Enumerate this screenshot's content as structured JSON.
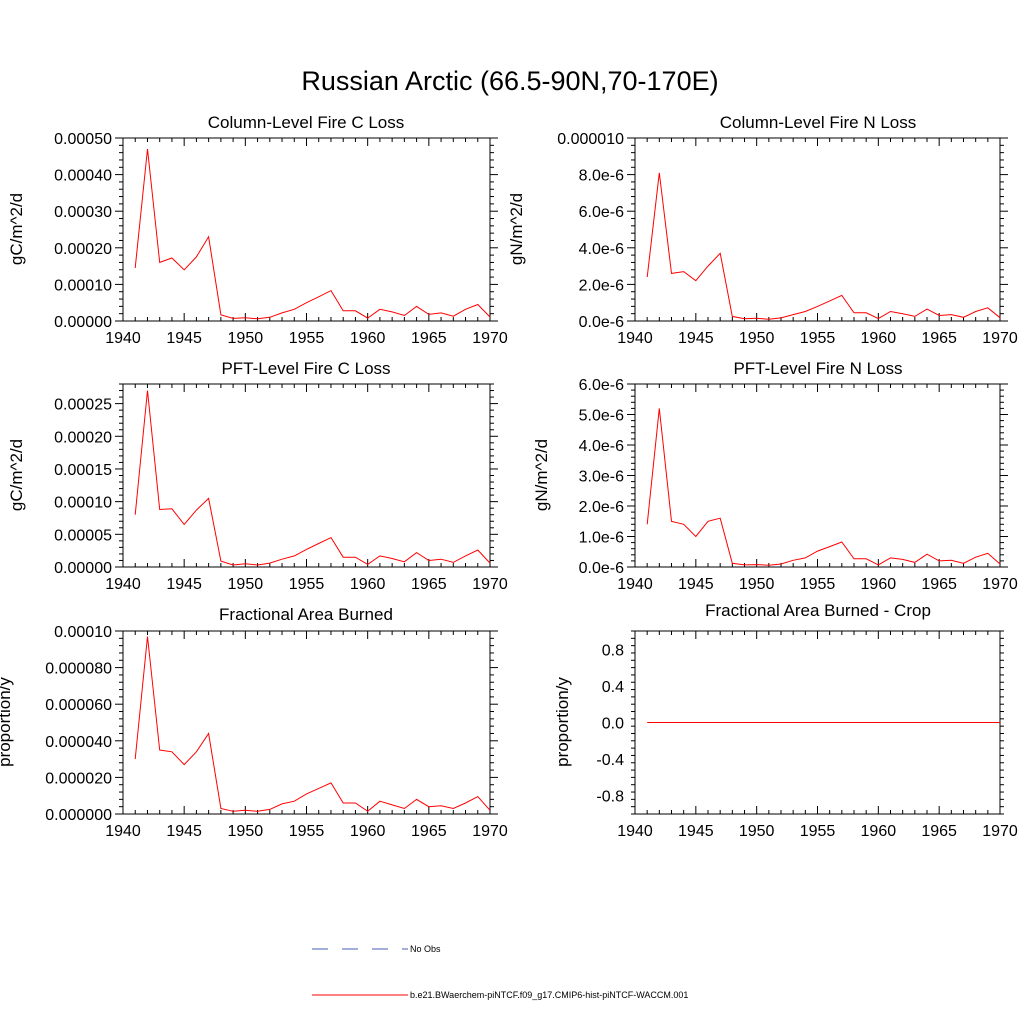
{
  "figure": {
    "title": "Russian Arctic (66.5-90N,70-170E)"
  },
  "legend": {
    "obs_label": "No Obs",
    "model_label": "b.e21.BWaerchem-piNTCF.f09_g17.CMIP6-hist-piNTCF-WACCM.001",
    "colors": {
      "obs": "#4a5dbb",
      "model": "#ff0000"
    }
  },
  "chart_data": [
    {
      "type": "line",
      "title": "Column-Level Fire C Loss",
      "xlabel": "",
      "ylabel": "gC/m^2/d",
      "xlim": [
        1940,
        1970
      ],
      "ylim": [
        0,
        0.0005
      ],
      "xticks": [
        1940,
        1945,
        1950,
        1955,
        1960,
        1965,
        1970
      ],
      "xtick_labels": [
        "1940",
        "1945",
        "1950",
        "1955",
        "1960",
        "1965",
        "1970"
      ],
      "yticks": [
        0,
        0.0001,
        0.0002,
        0.0003,
        0.0004,
        0.0005
      ],
      "ytick_labels": [
        "0.00000",
        "0.00010",
        "0.00020",
        "0.00030",
        "0.00040",
        "0.00050"
      ],
      "series": [
        {
          "color": "#ff0000",
          "x": [
            1941,
            1942,
            1943,
            1944,
            1945,
            1946,
            1947,
            1948,
            1949,
            1950,
            1951,
            1952,
            1953,
            1954,
            1955,
            1956,
            1957,
            1958,
            1959,
            1960,
            1961,
            1962,
            1963,
            1964,
            1965,
            1966,
            1967,
            1968,
            1969,
            1970
          ],
          "y": [
            0.000145,
            0.00047,
            0.00016,
            0.000172,
            0.00014,
            0.000175,
            0.00023,
            1.7e-05,
            7e-06,
            9e-06,
            6e-06,
            1e-05,
            2.2e-05,
            3.2e-05,
            5e-05,
            6.6e-05,
            8.3e-05,
            2.8e-05,
            2.8e-05,
            8e-06,
            3.2e-05,
            2.5e-05,
            1.5e-05,
            4e-05,
            1.8e-05,
            2.2e-05,
            1.3e-05,
            3.2e-05,
            4.5e-05,
            1.1e-05
          ]
        }
      ]
    },
    {
      "type": "line",
      "title": "Column-Level Fire N Loss",
      "xlabel": "",
      "ylabel": "gN/m^2/d",
      "xlim": [
        1940,
        1970
      ],
      "ylim": [
        0,
        1e-05
      ],
      "xticks": [
        1940,
        1945,
        1950,
        1955,
        1960,
        1965,
        1970
      ],
      "xtick_labels": [
        "1940",
        "1945",
        "1950",
        "1955",
        "1960",
        "1965",
        "1970"
      ],
      "yticks": [
        0,
        2e-06,
        4e-06,
        6e-06,
        8e-06,
        1e-05
      ],
      "ytick_labels": [
        "0.0e-6",
        "2.0e-6",
        "4.0e-6",
        "6.0e-6",
        "8.0e-6",
        "0.000010"
      ],
      "series": [
        {
          "color": "#ff0000",
          "x": [
            1941,
            1942,
            1943,
            1944,
            1945,
            1946,
            1947,
            1948,
            1949,
            1950,
            1951,
            1952,
            1953,
            1954,
            1955,
            1956,
            1957,
            1958,
            1959,
            1960,
            1961,
            1962,
            1963,
            1964,
            1965,
            1966,
            1967,
            1968,
            1969,
            1970
          ],
          "y": [
            2.4e-06,
            8.1e-06,
            2.6e-06,
            2.7e-06,
            2.2e-06,
            3e-06,
            3.7e-06,
            2.5e-07,
            1.2e-07,
            1.5e-07,
            1e-07,
            1.7e-07,
            3.5e-07,
            5.2e-07,
            8e-07,
            1.1e-06,
            1.4e-06,
            4.5e-07,
            4.5e-07,
            1.3e-07,
            5.2e-07,
            4e-07,
            2.5e-07,
            6.5e-07,
            3e-07,
            3.5e-07,
            2e-07,
            5.2e-07,
            7.2e-07,
            1.8e-07
          ]
        }
      ]
    },
    {
      "type": "line",
      "title": "PFT-Level Fire C Loss",
      "xlabel": "",
      "ylabel": "gC/m^2/d",
      "xlim": [
        1940,
        1970
      ],
      "ylim": [
        0,
        0.00028
      ],
      "xticks": [
        1940,
        1945,
        1950,
        1955,
        1960,
        1965,
        1970
      ],
      "xtick_labels": [
        "1940",
        "1945",
        "1950",
        "1955",
        "1960",
        "1965",
        "1970"
      ],
      "yticks": [
        0,
        5e-05,
        0.0001,
        0.00015,
        0.0002,
        0.00025
      ],
      "ytick_labels": [
        "0.00000",
        "0.00005",
        "0.00010",
        "0.00015",
        "0.00020",
        "0.00025"
      ],
      "series": [
        {
          "color": "#ff0000",
          "x": [
            1941,
            1942,
            1943,
            1944,
            1945,
            1946,
            1947,
            1948,
            1949,
            1950,
            1951,
            1952,
            1953,
            1954,
            1955,
            1956,
            1957,
            1958,
            1959,
            1960,
            1961,
            1962,
            1963,
            1964,
            1965,
            1966,
            1967,
            1968,
            1969,
            1970
          ],
          "y": [
            8e-05,
            0.00027,
            8.8e-05,
            8.9e-05,
            6.5e-05,
            8.7e-05,
            0.000105,
            9e-06,
            3e-06,
            5e-06,
            3e-06,
            6e-06,
            1.2e-05,
            1.7e-05,
            2.7e-05,
            3.6e-05,
            4.5e-05,
            1.5e-05,
            1.5e-05,
            4e-06,
            1.7e-05,
            1.3e-05,
            8e-06,
            2.2e-05,
            1e-05,
            1.2e-05,
            7e-06,
            1.7e-05,
            2.6e-05,
            6e-06
          ]
        }
      ]
    },
    {
      "type": "line",
      "title": "PFT-Level Fire N Loss",
      "xlabel": "",
      "ylabel": "gN/m^2/d",
      "xlim": [
        1940,
        1970
      ],
      "ylim": [
        0,
        6e-06
      ],
      "xticks": [
        1940,
        1945,
        1950,
        1955,
        1960,
        1965,
        1970
      ],
      "xtick_labels": [
        "1940",
        "1945",
        "1950",
        "1955",
        "1960",
        "1965",
        "1970"
      ],
      "yticks": [
        0,
        1e-06,
        2e-06,
        3e-06,
        4e-06,
        5e-06,
        6e-06
      ],
      "ytick_labels": [
        "0.0e-6",
        "1.0e-6",
        "2.0e-6",
        "3.0e-6",
        "4.0e-6",
        "5.0e-6",
        "6.0e-6"
      ],
      "series": [
        {
          "color": "#ff0000",
          "x": [
            1941,
            1942,
            1943,
            1944,
            1945,
            1946,
            1947,
            1948,
            1949,
            1950,
            1951,
            1952,
            1953,
            1954,
            1955,
            1956,
            1957,
            1958,
            1959,
            1960,
            1961,
            1962,
            1963,
            1964,
            1965,
            1966,
            1967,
            1968,
            1969,
            1970
          ],
          "y": [
            1.4e-06,
            5.2e-06,
            1.5e-06,
            1.4e-06,
            1e-06,
            1.5e-06,
            1.6e-06,
            1.2e-07,
            7e-08,
            8e-08,
            6e-08,
            1e-07,
            2.2e-07,
            3e-07,
            5.2e-07,
            6.7e-07,
            8.2e-07,
            2.7e-07,
            2.7e-07,
            7e-08,
            3e-07,
            2.5e-07,
            1.5e-07,
            4.2e-07,
            2e-07,
            2.2e-07,
            1.2e-07,
            3.2e-07,
            4.5e-07,
            1e-07
          ]
        }
      ]
    },
    {
      "type": "line",
      "title": "Fractional Area Burned",
      "xlabel": "",
      "ylabel": "proportion/y",
      "xlim": [
        1940,
        1970
      ],
      "ylim": [
        0,
        0.0001
      ],
      "xticks": [
        1940,
        1945,
        1950,
        1955,
        1960,
        1965,
        1970
      ],
      "xtick_labels": [
        "1940",
        "1945",
        "1950",
        "1955",
        "1960",
        "1965",
        "1970"
      ],
      "yticks": [
        0,
        2e-05,
        4e-05,
        6e-05,
        8e-05,
        0.0001
      ],
      "ytick_labels": [
        "0.000000",
        "0.000020",
        "0.000040",
        "0.000060",
        "0.000080",
        "0.00010"
      ],
      "series": [
        {
          "color": "#ff0000",
          "x": [
            1941,
            1942,
            1943,
            1944,
            1945,
            1946,
            1947,
            1948,
            1949,
            1950,
            1951,
            1952,
            1953,
            1954,
            1955,
            1956,
            1957,
            1958,
            1959,
            1960,
            1961,
            1962,
            1963,
            1964,
            1965,
            1966,
            1967,
            1968,
            1969,
            1970
          ],
          "y": [
            3e-05,
            9.7e-05,
            3.5e-05,
            3.4e-05,
            2.7e-05,
            3.4e-05,
            4.4e-05,
            3e-06,
            1.5e-06,
            2e-06,
            1.5e-06,
            2.5e-06,
            5.5e-06,
            7e-06,
            1.1e-05,
            1.4e-05,
            1.7e-05,
            6e-06,
            6e-06,
            1.5e-06,
            7e-06,
            5e-06,
            3e-06,
            8e-06,
            4e-06,
            4.5e-06,
            3e-06,
            6e-06,
            9.5e-06,
            2e-06
          ]
        }
      ]
    },
    {
      "type": "line",
      "title": "Fractional Area Burned - Crop",
      "xlabel": "",
      "ylabel": "proportion/y",
      "xlim": [
        1940,
        1970
      ],
      "ylim": [
        -1,
        1
      ],
      "xticks": [
        1940,
        1945,
        1950,
        1955,
        1960,
        1965,
        1970
      ],
      "xtick_labels": [
        "1940",
        "1945",
        "1950",
        "1955",
        "1960",
        "1965",
        "1970"
      ],
      "yticks": [
        -0.8,
        -0.4,
        0,
        0.4,
        0.8
      ],
      "ytick_labels": [
        "-0.8",
        "-0.4",
        "0.0",
        "0.4",
        "0.8"
      ],
      "series": [
        {
          "color": "#ff0000",
          "x": [
            1941,
            1970
          ],
          "y": [
            0,
            0
          ]
        }
      ]
    }
  ]
}
